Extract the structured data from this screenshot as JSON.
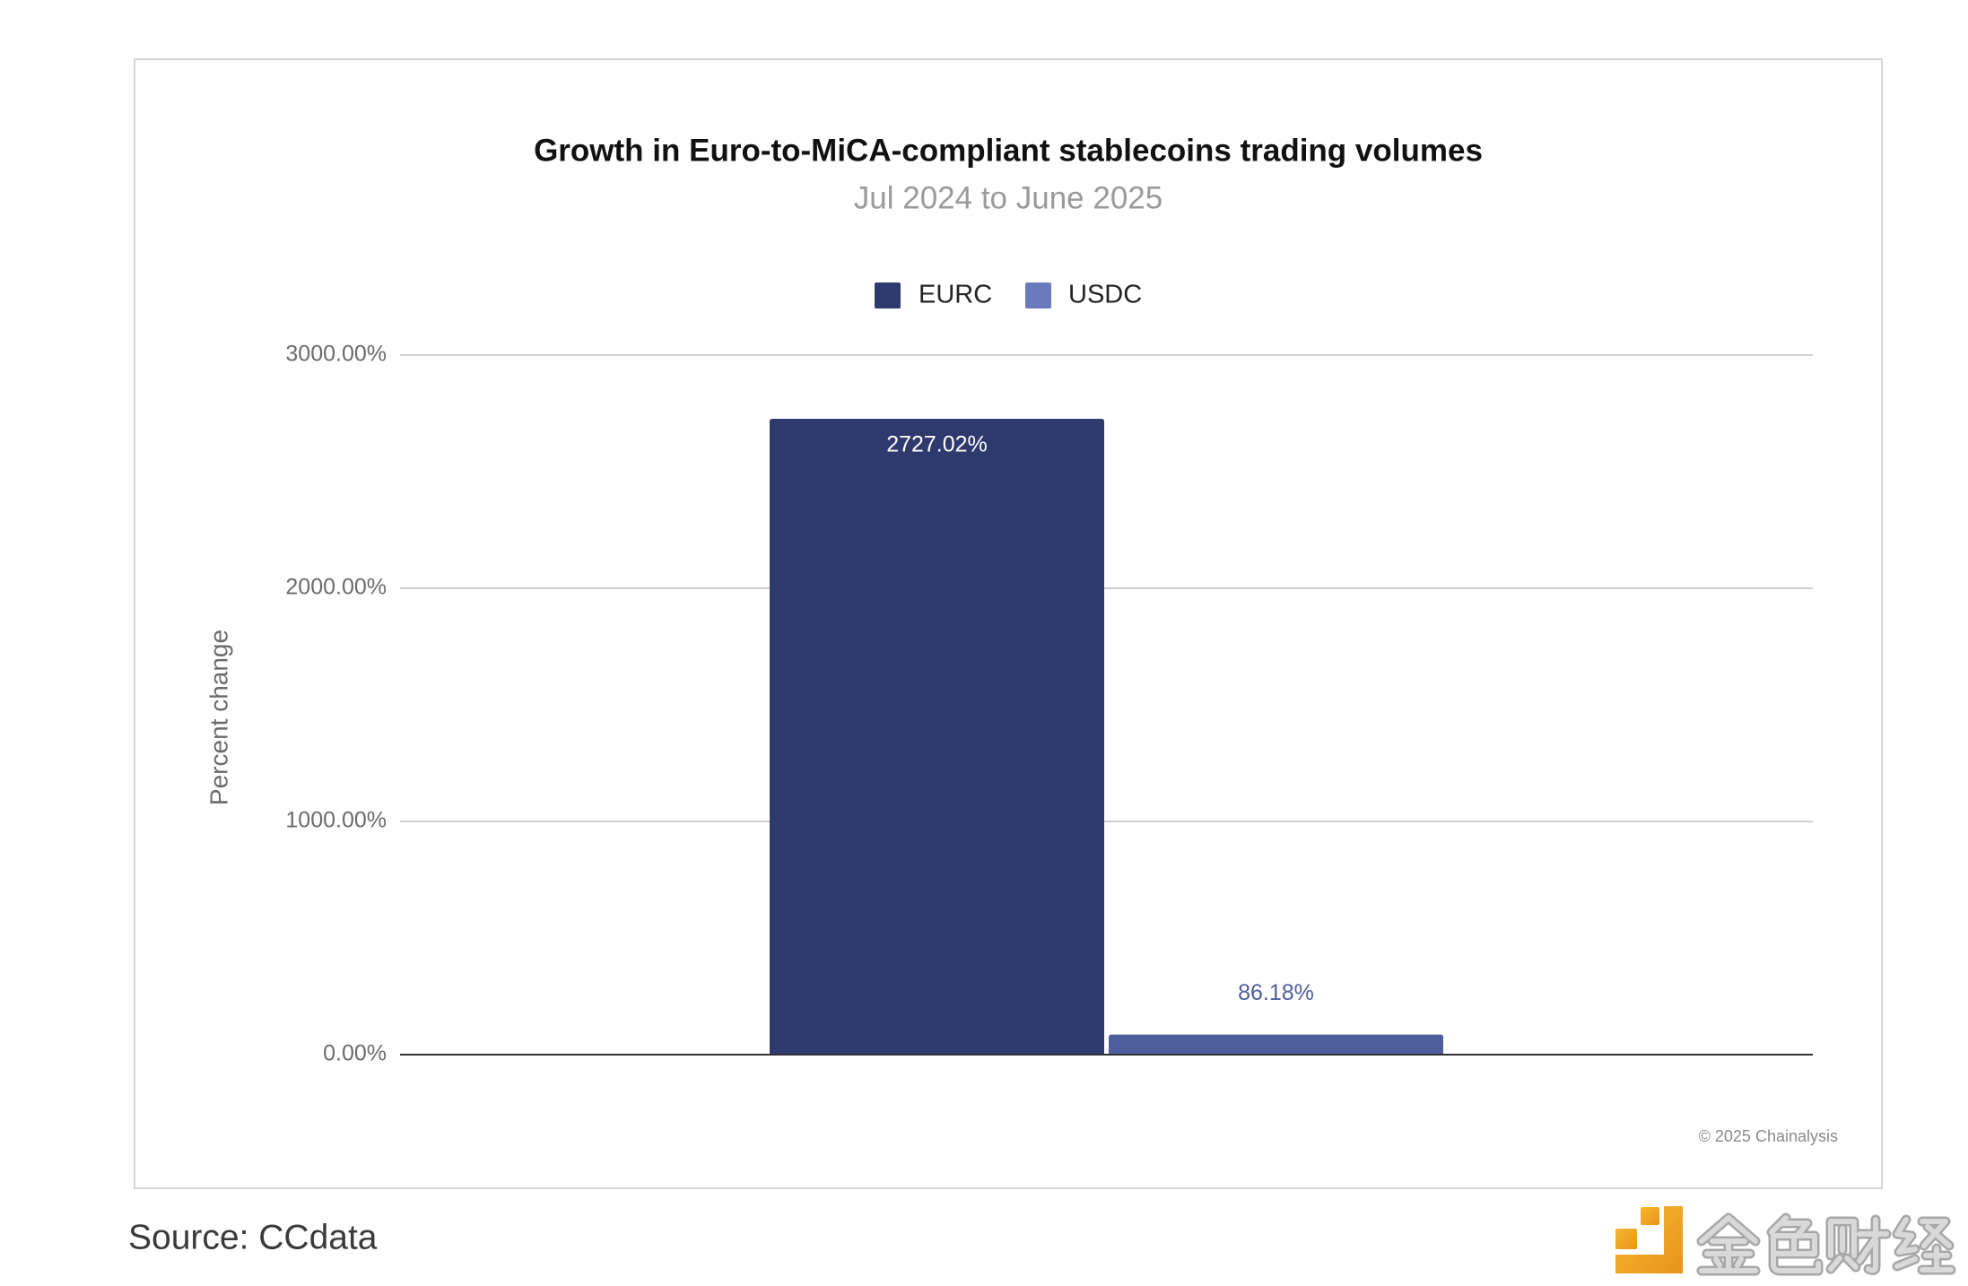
{
  "chart_data": {
    "type": "bar",
    "title": "Growth in Euro-to-MiCA-compliant stablecoins trading volumes",
    "subtitle": "Jul 2024 to June 2025",
    "xlabel": "",
    "ylabel": "Percent change",
    "ylim": [
      0,
      3000
    ],
    "yticks": [
      {
        "value": 3000,
        "label": "3000.00%"
      },
      {
        "value": 2000,
        "label": "2000.00%"
      },
      {
        "value": 1000,
        "label": "1000.00%"
      },
      {
        "value": 0,
        "label": "0.00%"
      }
    ],
    "grid": true,
    "legend": {
      "position": "top"
    },
    "series": [
      {
        "name": "EURC",
        "values": [
          2727.02
        ],
        "value_label": "2727.02%",
        "color": "#2e3a6d",
        "legend_color": "#2e3a6d"
      },
      {
        "name": "USDC",
        "values": [
          86.18
        ],
        "value_label": "86.18%",
        "color": "#4e5e9c",
        "legend_color": "#6a7abd"
      }
    ]
  },
  "credit": "© 2025 Chainalysis",
  "source": "Source: CCdata",
  "logo": {
    "text": "金色财经",
    "icon_colors": [
      "#f7b733",
      "#e8941a"
    ]
  }
}
